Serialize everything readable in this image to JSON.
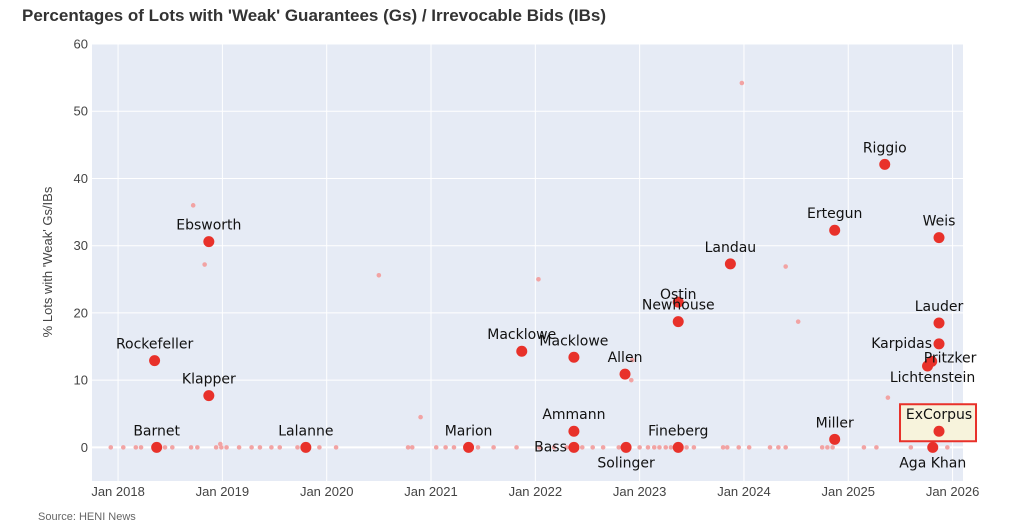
{
  "chart_data": {
    "type": "scatter",
    "title": "Percentages of Lots with 'Weak' Guarantees (Gs) / Irrevocable Bids (IBs)",
    "ylabel": "% Lots with 'Weak' Gs/IBs",
    "xlabel": "",
    "source": "Source: HENI News",
    "ylim": [
      -5,
      60
    ],
    "xlim": [
      2017.75,
      2026.1
    ],
    "yticks": [
      0,
      10,
      20,
      30,
      40,
      50,
      60
    ],
    "xticks": [
      {
        "value": 2018.0,
        "label": "Jan 2018"
      },
      {
        "value": 2019.0,
        "label": "Jan 2019"
      },
      {
        "value": 2020.0,
        "label": "Jan 2020"
      },
      {
        "value": 2021.0,
        "label": "Jan 2021"
      },
      {
        "value": 2022.0,
        "label": "Jan 2022"
      },
      {
        "value": 2023.0,
        "label": "Jan 2023"
      },
      {
        "value": 2024.0,
        "label": "Jan 2024"
      },
      {
        "value": 2025.0,
        "label": "Jan 2025"
      },
      {
        "value": 2026.0,
        "label": "Jan 2026"
      }
    ],
    "grid": true,
    "colors": {
      "named": "#e8312a",
      "other": "#f2a3a3",
      "highlight_border": "#e8312a",
      "highlight_fill": "#f7f3dc",
      "plot_bg": "#e6ebf5"
    },
    "named_points": [
      {
        "name": "Rockefeller",
        "x": 2018.35,
        "y": 12.9,
        "pos": "above"
      },
      {
        "name": "Barnet",
        "x": 2018.37,
        "y": 0,
        "pos": "above"
      },
      {
        "name": "Ebsworth",
        "x": 2018.87,
        "y": 30.6,
        "pos": "above"
      },
      {
        "name": "Klapper",
        "x": 2018.87,
        "y": 7.7,
        "pos": "above"
      },
      {
        "name": "Lalanne",
        "x": 2019.8,
        "y": 0,
        "pos": "above"
      },
      {
        "name": "Marion",
        "x": 2021.36,
        "y": 0,
        "pos": "above"
      },
      {
        "name": "Macklowe",
        "x": 2021.87,
        "y": 14.3,
        "pos": "above"
      },
      {
        "name": "Macklowe",
        "x": 2022.37,
        "y": 13.4,
        "pos": "above"
      },
      {
        "name": "Ammann",
        "x": 2022.37,
        "y": 2.4,
        "pos": "above"
      },
      {
        "name": "Bass",
        "x": 2022.37,
        "y": 0,
        "pos": "left"
      },
      {
        "name": "Allen",
        "x": 2022.86,
        "y": 10.9,
        "pos": "above"
      },
      {
        "name": "Solinger",
        "x": 2022.87,
        "y": 0,
        "pos": "below"
      },
      {
        "name": "Ostin",
        "x": 2023.37,
        "y": 21.6,
        "pos": "above"
      },
      {
        "name": "Newhouse",
        "x": 2023.37,
        "y": 18.7,
        "pos": "above"
      },
      {
        "name": "Fineberg",
        "x": 2023.37,
        "y": 0,
        "pos": "above"
      },
      {
        "name": "Landau",
        "x": 2023.87,
        "y": 27.3,
        "pos": "above"
      },
      {
        "name": "Ertegun",
        "x": 2024.87,
        "y": 32.3,
        "pos": "above"
      },
      {
        "name": "Miller",
        "x": 2024.87,
        "y": 1.2,
        "pos": "above"
      },
      {
        "name": "Riggio",
        "x": 2025.35,
        "y": 42.1,
        "pos": "above"
      },
      {
        "name": "Weis",
        "x": 2025.87,
        "y": 31.2,
        "pos": "above"
      },
      {
        "name": "Lauder",
        "x": 2025.87,
        "y": 18.5,
        "pos": "above"
      },
      {
        "name": "Karpidas",
        "x": 2025.87,
        "y": 15.4,
        "pos": "left"
      },
      {
        "name": "Pritzker",
        "x": 2025.8,
        "y": 12.8,
        "pos": "right"
      },
      {
        "name": "Lichtenstein",
        "x": 2025.76,
        "y": 12.1,
        "pos": "belowcenter"
      },
      {
        "name": "ExCorpus",
        "x": 2025.87,
        "y": 2.4,
        "pos": "above",
        "highlight": true
      },
      {
        "name": "Aga Khan",
        "x": 2025.81,
        "y": 0,
        "pos": "below"
      }
    ],
    "other_points": [
      {
        "x": 2018.72,
        "y": 36.0
      },
      {
        "x": 2018.83,
        "y": 27.2
      },
      {
        "x": 2018.98,
        "y": 0.5
      },
      {
        "x": 2020.5,
        "y": 25.6
      },
      {
        "x": 2020.9,
        "y": 4.5
      },
      {
        "x": 2022.03,
        "y": 25.0
      },
      {
        "x": 2022.93,
        "y": 13.0
      },
      {
        "x": 2022.92,
        "y": 10.0
      },
      {
        "x": 2023.98,
        "y": 54.2
      },
      {
        "x": 2024.4,
        "y": 26.9
      },
      {
        "x": 2024.52,
        "y": 18.7
      },
      {
        "x": 2025.38,
        "y": 7.4
      },
      {
        "x": 2017.93,
        "y": 0
      },
      {
        "x": 2018.05,
        "y": 0
      },
      {
        "x": 2018.17,
        "y": 0
      },
      {
        "x": 2018.22,
        "y": 0
      },
      {
        "x": 2018.45,
        "y": 0
      },
      {
        "x": 2018.52,
        "y": 0
      },
      {
        "x": 2018.7,
        "y": 0
      },
      {
        "x": 2018.76,
        "y": 0
      },
      {
        "x": 2018.94,
        "y": 0
      },
      {
        "x": 2018.99,
        "y": 0
      },
      {
        "x": 2019.04,
        "y": 0
      },
      {
        "x": 2019.16,
        "y": 0
      },
      {
        "x": 2019.28,
        "y": 0
      },
      {
        "x": 2019.36,
        "y": 0
      },
      {
        "x": 2019.47,
        "y": 0
      },
      {
        "x": 2019.55,
        "y": 0
      },
      {
        "x": 2019.72,
        "y": 0
      },
      {
        "x": 2019.93,
        "y": 0
      },
      {
        "x": 2020.09,
        "y": 0
      },
      {
        "x": 2020.78,
        "y": 0
      },
      {
        "x": 2020.82,
        "y": 0
      },
      {
        "x": 2021.05,
        "y": 0
      },
      {
        "x": 2021.14,
        "y": 0
      },
      {
        "x": 2021.22,
        "y": 0
      },
      {
        "x": 2021.45,
        "y": 0
      },
      {
        "x": 2021.6,
        "y": 0
      },
      {
        "x": 2021.82,
        "y": 0
      },
      {
        "x": 2022.04,
        "y": 0
      },
      {
        "x": 2022.18,
        "y": 0
      },
      {
        "x": 2022.3,
        "y": 0
      },
      {
        "x": 2022.45,
        "y": 0
      },
      {
        "x": 2022.55,
        "y": 0
      },
      {
        "x": 2022.65,
        "y": 0
      },
      {
        "x": 2022.8,
        "y": 0
      },
      {
        "x": 2023.0,
        "y": 0
      },
      {
        "x": 2023.08,
        "y": 0
      },
      {
        "x": 2023.14,
        "y": 0
      },
      {
        "x": 2023.19,
        "y": 0
      },
      {
        "x": 2023.25,
        "y": 0
      },
      {
        "x": 2023.3,
        "y": 0
      },
      {
        "x": 2023.45,
        "y": 0
      },
      {
        "x": 2023.52,
        "y": 0
      },
      {
        "x": 2023.8,
        "y": 0
      },
      {
        "x": 2023.84,
        "y": 0
      },
      {
        "x": 2023.95,
        "y": 0
      },
      {
        "x": 2024.05,
        "y": 0
      },
      {
        "x": 2024.25,
        "y": 0
      },
      {
        "x": 2024.33,
        "y": 0
      },
      {
        "x": 2024.4,
        "y": 0
      },
      {
        "x": 2024.75,
        "y": 0
      },
      {
        "x": 2024.8,
        "y": 0
      },
      {
        "x": 2024.85,
        "y": 0
      },
      {
        "x": 2025.15,
        "y": 0
      },
      {
        "x": 2025.27,
        "y": 0
      },
      {
        "x": 2025.6,
        "y": 0
      },
      {
        "x": 2025.95,
        "y": 0
      }
    ]
  }
}
